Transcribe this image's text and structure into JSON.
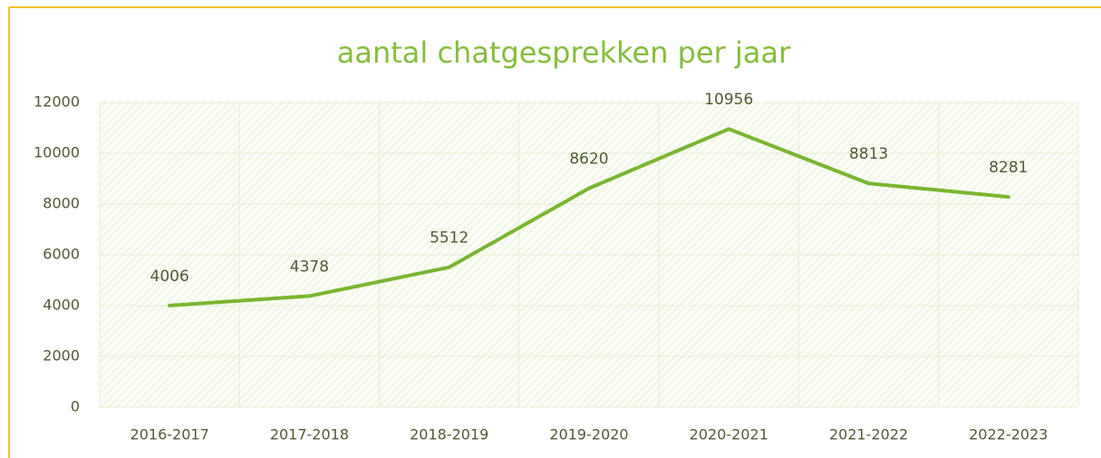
{
  "chart_data": {
    "type": "line",
    "title": "aantal chatgesprekken per jaar",
    "categories": [
      "2016-2017",
      "2017-2018",
      "2018-2019",
      "2019-2020",
      "2020-2021",
      "2021-2022",
      "2022-2023"
    ],
    "values": [
      4006,
      4378,
      5512,
      8620,
      10956,
      8813,
      8281
    ],
    "color": "#7ab532",
    "ylim": [
      0,
      12000
    ],
    "yticks": [
      0,
      2000,
      4000,
      6000,
      8000,
      10000,
      12000
    ],
    "grid": true
  }
}
